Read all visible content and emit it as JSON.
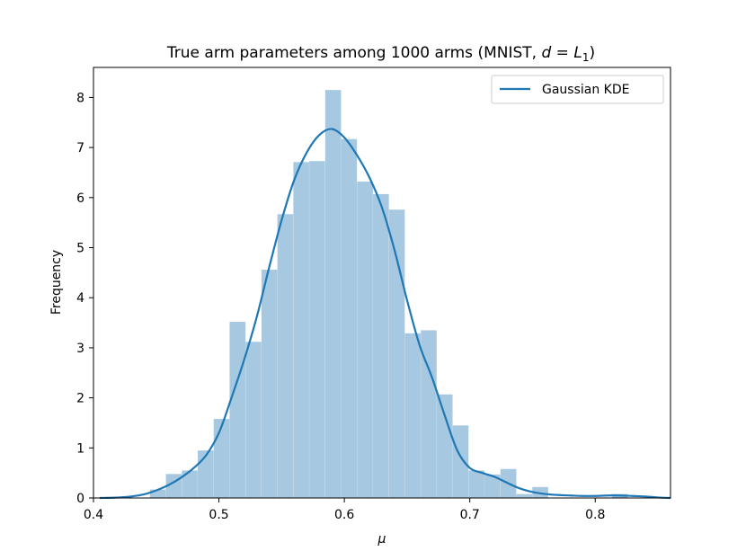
{
  "chart_data": {
    "type": "bar",
    "title_prefix": "True arm parameters among 1000 arms (MNIST, ",
    "title_d": "d",
    "title_eq": " = ",
    "title_L": "L",
    "title_sub": "1",
    "title_suffix": ")",
    "xlabel": "μ",
    "ylabel": "Frequency",
    "xlim": [
      0.4,
      0.86
    ],
    "ylim": [
      0,
      8.6
    ],
    "xticks": [
      0.4,
      0.5,
      0.6,
      0.7,
      0.8
    ],
    "xtick_labels": [
      "0.4",
      "0.5",
      "0.6",
      "0.7",
      "0.8"
    ],
    "yticks": [
      0,
      1,
      2,
      3,
      4,
      5,
      6,
      7,
      8
    ],
    "ytick_labels": [
      "0",
      "1",
      "2",
      "3",
      "4",
      "5",
      "6",
      "7",
      "8"
    ],
    "histogram": {
      "bin_width": 0.0127,
      "bins": [
        {
          "x0": 0.445,
          "y": 0.17
        },
        {
          "x0": 0.4577,
          "y": 0.48
        },
        {
          "x0": 0.4704,
          "y": 0.55
        },
        {
          "x0": 0.4831,
          "y": 0.95
        },
        {
          "x0": 0.4958,
          "y": 1.58
        },
        {
          "x0": 0.5085,
          "y": 3.52
        },
        {
          "x0": 0.5212,
          "y": 3.12
        },
        {
          "x0": 0.5339,
          "y": 4.56
        },
        {
          "x0": 0.5466,
          "y": 5.67
        },
        {
          "x0": 0.5593,
          "y": 6.71
        },
        {
          "x0": 0.572,
          "y": 6.73
        },
        {
          "x0": 0.5847,
          "y": 8.15
        },
        {
          "x0": 0.5974,
          "y": 7.17
        },
        {
          "x0": 0.6101,
          "y": 6.32
        },
        {
          "x0": 0.6228,
          "y": 6.07
        },
        {
          "x0": 0.6355,
          "y": 5.76
        },
        {
          "x0": 0.6482,
          "y": 3.29
        },
        {
          "x0": 0.6609,
          "y": 3.35
        },
        {
          "x0": 0.6736,
          "y": 2.07
        },
        {
          "x0": 0.6863,
          "y": 1.45
        },
        {
          "x0": 0.699,
          "y": 0.55
        },
        {
          "x0": 0.7117,
          "y": 0.47
        },
        {
          "x0": 0.7244,
          "y": 0.58
        },
        {
          "x0": 0.7371,
          "y": 0.08
        },
        {
          "x0": 0.7498,
          "y": 0.22
        },
        {
          "x0": 0.7625,
          "y": 0
        },
        {
          "x0": 0.7752,
          "y": 0
        },
        {
          "x0": 0.7879,
          "y": 0
        },
        {
          "x0": 0.8006,
          "y": 0
        },
        {
          "x0": 0.8133,
          "y": 0.08
        }
      ]
    },
    "series": [
      {
        "name": "Gaussian KDE",
        "x": [
          0.405,
          0.42,
          0.43,
          0.44,
          0.45,
          0.46,
          0.47,
          0.48,
          0.49,
          0.5,
          0.51,
          0.52,
          0.53,
          0.54,
          0.55,
          0.56,
          0.57,
          0.58,
          0.59,
          0.6,
          0.61,
          0.62,
          0.63,
          0.64,
          0.65,
          0.66,
          0.67,
          0.68,
          0.69,
          0.7,
          0.71,
          0.72,
          0.73,
          0.74,
          0.75,
          0.76,
          0.77,
          0.78,
          0.79,
          0.8,
          0.81,
          0.82,
          0.83,
          0.84,
          0.85,
          0.86
        ],
        "y": [
          0.0,
          0.01,
          0.03,
          0.07,
          0.15,
          0.26,
          0.41,
          0.6,
          0.86,
          1.3,
          2.0,
          2.75,
          3.6,
          4.6,
          5.55,
          6.35,
          6.9,
          7.25,
          7.37,
          7.2,
          6.85,
          6.4,
          5.8,
          4.95,
          3.95,
          3.05,
          2.4,
          1.65,
          0.95,
          0.6,
          0.5,
          0.42,
          0.3,
          0.19,
          0.12,
          0.08,
          0.06,
          0.05,
          0.04,
          0.04,
          0.05,
          0.05,
          0.04,
          0.03,
          0.01,
          0.0
        ]
      }
    ],
    "legend_position": "top-right",
    "colors": {
      "hist_fill": "#a6c8e0",
      "kde_line": "#1f77b4"
    }
  }
}
